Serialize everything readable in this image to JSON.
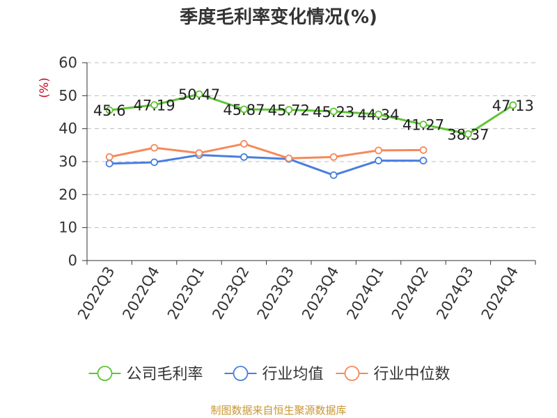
{
  "title": "季度毛利率变化情况(%)",
  "source": "制图数据来自恒生聚源数据库",
  "chart_data": {
    "type": "line",
    "title": "季度毛利率变化情况(%)",
    "ylabel": "(%)",
    "xlabel": "",
    "ylim": [
      0,
      60
    ],
    "yticks": [
      0,
      10,
      20,
      30,
      40,
      50,
      60
    ],
    "grid": true,
    "legend_position": "bottom",
    "categories": [
      "2022Q3",
      "2022Q4",
      "2023Q1",
      "2023Q2",
      "2023Q3",
      "2023Q4",
      "2024Q1",
      "2024Q2",
      "2024Q3",
      "2024Q4"
    ],
    "series": [
      {
        "name": "公司毛利率",
        "color": "#5cc531",
        "labels": true,
        "values": [
          45.6,
          47.19,
          50.47,
          45.87,
          45.72,
          45.23,
          44.34,
          41.27,
          38.37,
          47.13
        ]
      },
      {
        "name": "行业均值",
        "color": "#4a7ede",
        "labels": false,
        "values": [
          29.4,
          29.8,
          32.0,
          31.4,
          30.8,
          25.9,
          30.3,
          30.3,
          null,
          null
        ]
      },
      {
        "name": "行业中位数",
        "color": "#f5895a",
        "labels": false,
        "values": [
          31.4,
          34.2,
          32.6,
          35.4,
          31.0,
          31.4,
          33.4,
          33.5,
          null,
          null
        ]
      }
    ]
  }
}
